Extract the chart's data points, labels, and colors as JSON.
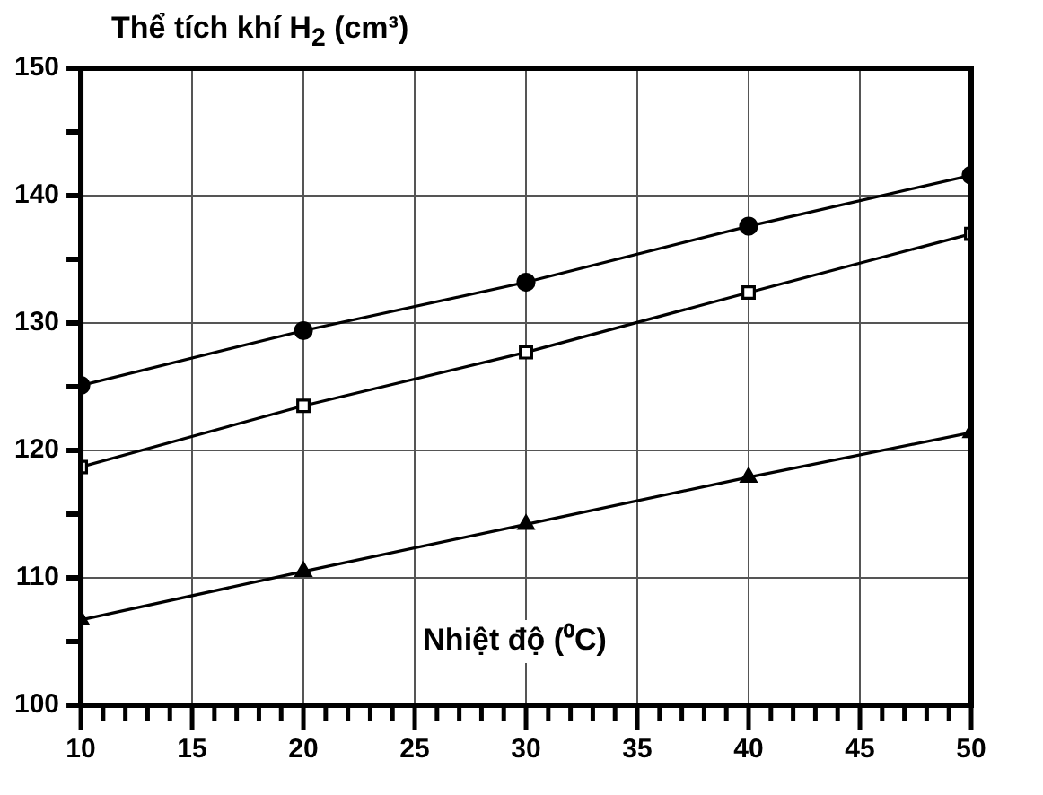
{
  "chart_data": {
    "type": "line",
    "ylabel": "Thể tích khí H$_{2}$ (cm³)",
    "xlabel": "Nhiệt độ (⁰C)",
    "x": [
      10,
      20,
      30,
      40,
      50
    ],
    "series": [
      {
        "color": "#000000",
        "marker": "circle",
        "values": [
          125.1,
          129.4,
          133.2,
          137.6,
          141.6
        ]
      },
      {
        "color": "#000000",
        "marker": "square",
        "values": [
          118.7,
          123.5,
          127.7,
          132.4,
          137.0
        ]
      },
      {
        "color": "#000000",
        "marker": "triangle",
        "values": [
          106.7,
          110.5,
          114.2,
          117.9,
          121.4
        ]
      }
    ],
    "xlim": [
      10,
      50
    ],
    "xticks": [
      10,
      {
        "value": 11,
        "label": null
      },
      {
        "value": 12,
        "label": null
      },
      {
        "value": 13,
        "label": null
      },
      {
        "value": 14,
        "label": null
      },
      15,
      {
        "value": 16,
        "label": null
      },
      {
        "value": 17,
        "label": null
      },
      {
        "value": 18,
        "label": null
      },
      {
        "value": 19,
        "label": null
      },
      20,
      {
        "value": 21,
        "label": null
      },
      {
        "value": 22,
        "label": null
      },
      {
        "value": 23,
        "label": null
      },
      {
        "value": 24,
        "label": null
      },
      25,
      {
        "value": 26,
        "label": null
      },
      {
        "value": 27,
        "label": null
      },
      {
        "value": 28,
        "label": null
      },
      {
        "value": 29,
        "label": null
      },
      30,
      {
        "value": 31,
        "label": null
      },
      {
        "value": 32,
        "label": null
      },
      {
        "value": 33,
        "label": null
      },
      {
        "value": 34,
        "label": null
      },
      35,
      {
        "value": 36,
        "label": null
      },
      {
        "value": 37,
        "label": null
      },
      {
        "value": 38,
        "label": null
      },
      {
        "value": 39,
        "label": null
      },
      40,
      {
        "value": 41,
        "label": null
      },
      {
        "value": 42,
        "label": null
      },
      {
        "value": 43,
        "label": null
      },
      {
        "value": 44,
        "label": null
      },
      45,
      {
        "value": 46,
        "label": null
      },
      {
        "value": 47,
        "label": null
      },
      {
        "value": 48,
        "label": null
      },
      {
        "value": 49,
        "label": null
      },
      50
    ],
    "ylim": [
      100,
      150
    ],
    "yticks": [
      100,
      {
        "value": 105,
        "label": null
      },
      110,
      {
        "value": 115,
        "label": null
      },
      120,
      {
        "value": 125,
        "label": null
      },
      130,
      {
        "value": 135,
        "label": null
      },
      140,
      {
        "value": 145,
        "label": null
      },
      150
    ],
    "grid": true,
    "line_style": "solid",
    "legend": false
  }
}
